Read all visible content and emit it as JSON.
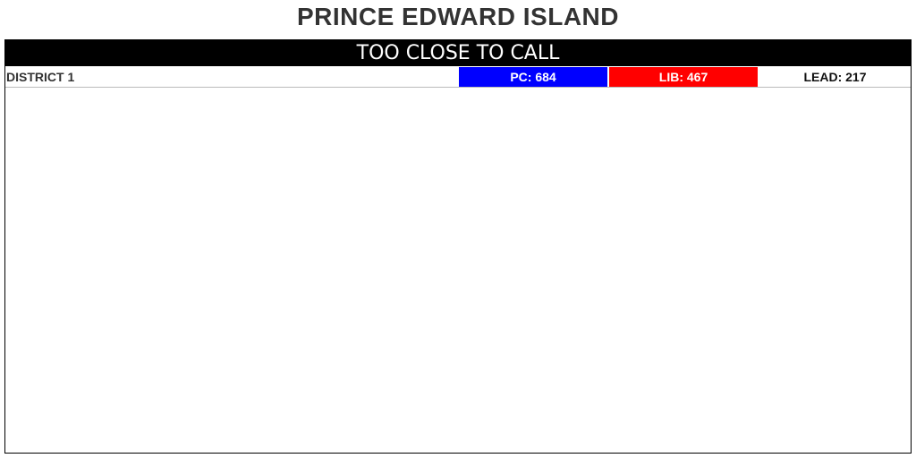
{
  "page": {
    "title": "PRINCE EDWARD ISLAND"
  },
  "status": {
    "text": "TOO CLOSE TO CALL"
  },
  "districts": [
    {
      "name": "DISTRICT 1",
      "pc_label": "PC: 684",
      "lib_label": "LIB: 467",
      "lead_label": "LEAD: 217",
      "pc_votes": 684,
      "lib_votes": 467,
      "lead": 217
    }
  ],
  "colors": {
    "pc": "#0000ff",
    "lib": "#ff0000",
    "banner": "#000000"
  }
}
